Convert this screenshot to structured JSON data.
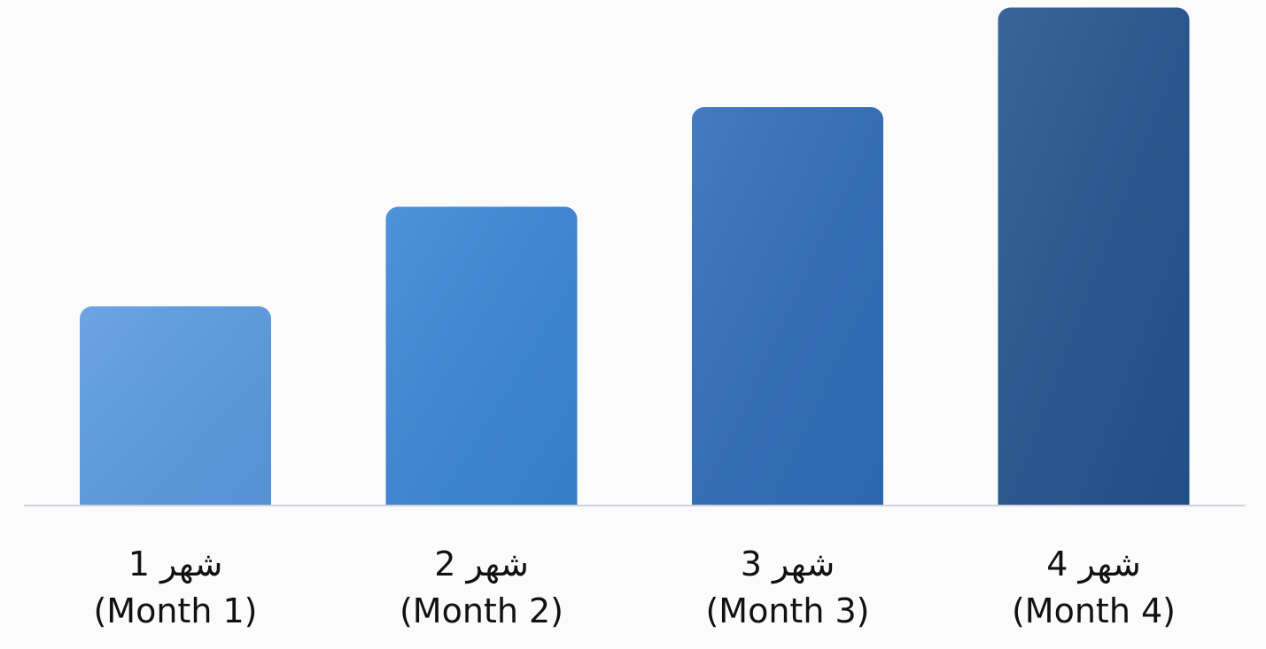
{
  "chart_data": {
    "type": "bar",
    "categories": [
      {
        "ar": "شهر 1",
        "en": "(Month 1)"
      },
      {
        "ar": "شهر 2",
        "en": "(Month 2)"
      },
      {
        "ar": "شهر 3",
        "en": "(Month 3)"
      },
      {
        "ar": "شهر 4",
        "en": "(Month 4)"
      }
    ],
    "values": [
      1,
      1.5,
      2,
      2.5
    ],
    "value_scale": "relative heights (no axis values printed)",
    "colors": [
      "#5b9be1",
      "#3a86d6",
      "#2f6db8",
      "#24548f"
    ],
    "title": "",
    "xlabel": "",
    "ylabel": "",
    "grid": false,
    "legend": "none"
  }
}
